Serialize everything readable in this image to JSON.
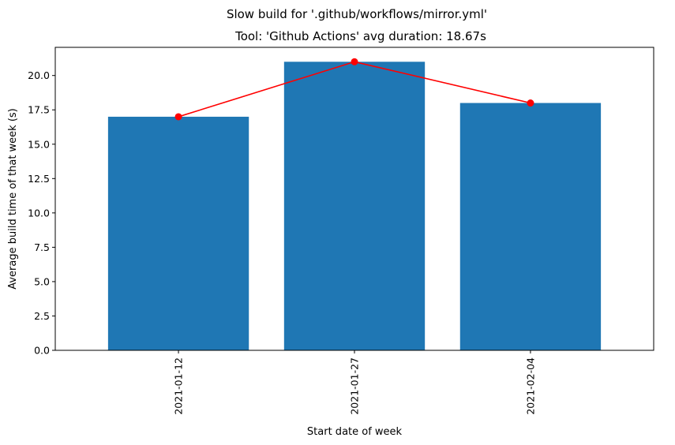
{
  "chart_data": {
    "type": "bar",
    "suptitle": "Slow build for '.github/workflows/mirror.yml'",
    "title": "Tool: 'Github Actions' avg duration: 18.67s",
    "xlabel": "Start date of week",
    "ylabel": "Average build time of that week (s)",
    "categories": [
      "2021-01-12",
      "2021-01-27",
      "2021-02-04"
    ],
    "x": [
      "2021-01-12",
      "2021-01-27",
      "2021-02-04"
    ],
    "values": [
      17,
      21,
      18
    ],
    "line_values": [
      17,
      21,
      18
    ],
    "ylim": [
      0,
      22.05
    ],
    "yticks": [
      0.0,
      2.5,
      5.0,
      7.5,
      10.0,
      12.5,
      15.0,
      17.5,
      20.0
    ],
    "ytick_labels": [
      "0.0",
      "2.5",
      "5.0",
      "7.5",
      "10.0",
      "12.5",
      "15.0",
      "17.5",
      "20.0"
    ],
    "x_scale": "date",
    "grid": false,
    "legend": "none",
    "bar_color": "#1f77b4",
    "line_color": "#ff0000",
    "marker": "circle"
  }
}
